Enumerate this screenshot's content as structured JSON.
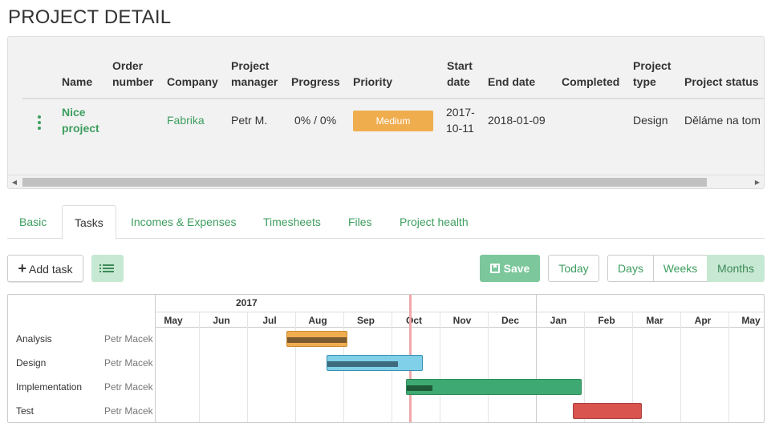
{
  "page_title": "PROJECT DETAIL",
  "project_table": {
    "headers": {
      "name": "Name",
      "order_number_1": "Order",
      "order_number_2": "number",
      "company": "Company",
      "manager_1": "Project",
      "manager_2": "manager",
      "progress": "Progress",
      "priority": "Priority",
      "start_1": "Start",
      "start_2": "date",
      "end": "End date",
      "completed": "Completed",
      "type_1": "Project",
      "type_2": "type",
      "status": "Project status"
    },
    "row": {
      "name_1": "Nice",
      "name_2": "project",
      "company": "Fabrika",
      "manager": "Petr M.",
      "progress": "0% / 0%",
      "priority": "Medium",
      "start_1": "2017-",
      "start_2": "10-11",
      "end": "2018-01-09",
      "type": "Design",
      "status": "Děláme na tom"
    }
  },
  "tabs": [
    "Basic",
    "Tasks",
    "Incomes & Expenses",
    "Timesheets",
    "Files",
    "Project health"
  ],
  "active_tab": "Tasks",
  "toolbar": {
    "add_task": "Add task",
    "save": "Save",
    "today": "Today",
    "days": "Days",
    "weeks": "Weeks",
    "months": "Months"
  },
  "gantt": {
    "year": "2017",
    "months": [
      "May",
      "Jun",
      "Jul",
      "Aug",
      "Sep",
      "Oct",
      "Nov",
      "Dec",
      "Jan",
      "Feb",
      "Mar",
      "Apr",
      "May"
    ],
    "tasks": [
      {
        "name": "Analysis",
        "owner": "Petr Macek"
      },
      {
        "name": "Design",
        "owner": "Petr Macek"
      },
      {
        "name": "Implementation",
        "owner": "Petr Macek"
      },
      {
        "name": "Test",
        "owner": "Petr Macek"
      }
    ]
  },
  "colors": {
    "accent_green": "#3d9e5f",
    "priority_medium": "#f0ad4e",
    "bar_analysis": "#f0ad4e",
    "bar_design": "#7fd0e8",
    "bar_implementation": "#3fa973",
    "bar_test": "#d9534f",
    "today_marker": "#f0a8a8"
  }
}
